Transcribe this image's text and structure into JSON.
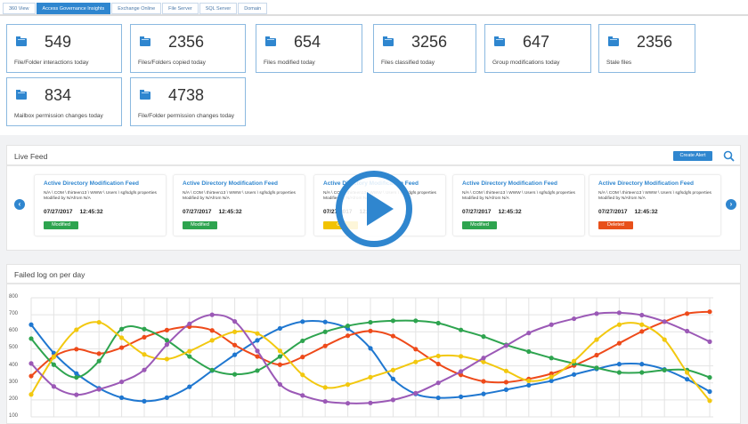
{
  "tabs": [
    {
      "label": "360 View",
      "active": false
    },
    {
      "label": "Access Governance Insights",
      "active": true
    },
    {
      "label": "Exchange Online",
      "active": false
    },
    {
      "label": "File Server",
      "active": false
    },
    {
      "label": "SQL Server",
      "active": false
    },
    {
      "label": "Domain",
      "active": false
    }
  ],
  "stats": [
    {
      "value": "549",
      "label": "File/Folder interactions today",
      "icon": "folder-icon"
    },
    {
      "value": "2356",
      "label": "Files/Folders copied today",
      "icon": "document-copy-icon"
    },
    {
      "value": "654",
      "label": "Files modified today",
      "icon": "file-edit-icon"
    },
    {
      "value": "3256",
      "label": "Files classified today",
      "icon": "file-classify-icon"
    },
    {
      "value": "647",
      "label": "Group modifications today",
      "icon": "group-shield-icon"
    },
    {
      "value": "2356",
      "label": "Stale files",
      "icon": "stale-folder-icon"
    },
    {
      "value": "834",
      "label": "Mailbox permission changes today",
      "icon": "mailbox-icon"
    },
    {
      "value": "4738",
      "label": "File/Folder permission changes today",
      "icon": "folder-permission-icon"
    }
  ],
  "live_feed": {
    "title": "Live Feed",
    "create_alert": "Create Alert",
    "items": [
      {
        "title": "Active Directory Modification Feed",
        "desc": "N/A \\ COM \\ thirteen13 \\ WWW \\ Users \\ sgfsdgfs properties Modified by N/Afrom N/A",
        "date": "07/27/2017",
        "time": "12:45:32",
        "status": "Modified",
        "status_color": "#2ea44f"
      },
      {
        "title": "Active Directory Modification Feed",
        "desc": "N/A \\ COM \\ thirteen13 \\ WWW \\ Users \\ sgfsdgfs properties Modified by N/Afrom N/A",
        "date": "07/27/2017",
        "time": "12:45:32",
        "status": "Modified",
        "status_color": "#2ea44f"
      },
      {
        "title": "Active Directory Modification Feed",
        "desc": "N/A \\ COM \\ thirteen13 \\ WWW \\ Users \\ sgfsdgfs properties Modified by N/Afrom N/A",
        "date": "07/27/2017",
        "time": "12:45:32",
        "status": "Cre",
        "status_color": "#f2c300"
      },
      {
        "title": "Active Directory Modification Feed",
        "desc": "N/A \\ COM \\ thirteen13 \\ WWW \\ Users \\ sgfsdgfs properties Modified by N/Afrom N/A",
        "date": "07/27/2017",
        "time": "12:45:32",
        "status": "Modified",
        "status_color": "#2ea44f"
      },
      {
        "title": "Active Directory Modification Feed",
        "desc": "N/A \\ COM \\ thirteen13 \\ WWW \\ Users \\ sgfsdgfs properties Modified by N/Afrom N/A",
        "date": "07/27/2017",
        "time": "12:45:32",
        "status": "Deleted",
        "status_color": "#e8501a"
      }
    ]
  },
  "chart_data": {
    "type": "line",
    "title": "Failed log on per day",
    "ylim": [
      100,
      800
    ],
    "yticks": [
      100,
      200,
      300,
      400,
      500,
      600,
      700,
      800
    ],
    "grid": true,
    "smooth": true,
    "series": [
      {
        "color": "#1f77d0",
        "values": [
          642,
          475,
          355,
          268,
          213,
          192,
          213,
          277,
          372,
          465,
          550,
          620,
          660,
          658,
          618,
          503,
          323,
          235,
          212,
          218,
          235,
          260,
          286,
          312,
          349,
          382,
          410,
          410,
          379,
          321,
          249
        ]
      },
      {
        "color": "#ee4a1a",
        "values": [
          340,
          455,
          498,
          472,
          507,
          568,
          610,
          630,
          608,
          522,
          455,
          407,
          452,
          517,
          577,
          605,
          575,
          498,
          411,
          347,
          309,
          304,
          323,
          354,
          402,
          463,
          533,
          602,
          660,
          707,
          718
        ]
      },
      {
        "color": "#2ea44f",
        "values": [
          560,
          407,
          332,
          428,
          616,
          616,
          550,
          455,
          375,
          350,
          372,
          455,
          547,
          600,
          635,
          656,
          665,
          665,
          651,
          611,
          572,
          523,
          484,
          446,
          414,
          388,
          361,
          361,
          375,
          375,
          332
        ]
      },
      {
        "color": "#f2c80f",
        "values": [
          232,
          452,
          612,
          656,
          565,
          467,
          440,
          486,
          550,
          600,
          590,
          488,
          347,
          273,
          290,
          333,
          375,
          423,
          458,
          456,
          423,
          370,
          312,
          335,
          428,
          554,
          642,
          642,
          554,
          361,
          195
        ]
      },
      {
        "color": "#9b59b6",
        "values": [
          414,
          279,
          230,
          262,
          306,
          376,
          525,
          647,
          700,
          661,
          488,
          291,
          226,
          191,
          180,
          182,
          200,
          239,
          300,
          367,
          446,
          519,
          593,
          642,
          677,
          707,
          712,
          698,
          660,
          604,
          542
        ]
      }
    ]
  }
}
